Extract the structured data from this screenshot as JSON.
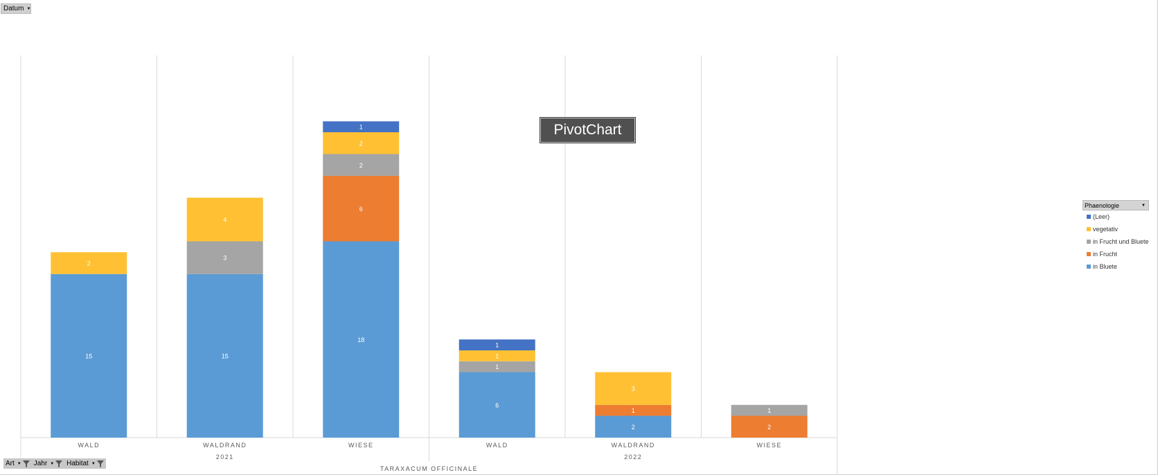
{
  "filters": {
    "datum": "Datum",
    "art": "Art",
    "jahr": "Jahr",
    "habitat": "Habitat"
  },
  "tooltip": "PivotChart",
  "legend": {
    "title": "Phaenologie",
    "items": [
      {
        "label": "(Leer)",
        "color": "#4472C4"
      },
      {
        "label": "vegetativ",
        "color": "#FFC133"
      },
      {
        "label": "in Frucht und Bluete",
        "color": "#A5A5A5"
      },
      {
        "label": "in Frucht",
        "color": "#ED7D31"
      },
      {
        "label": "in Bluete",
        "color": "#5B9BD5"
      }
    ]
  },
  "chart_data": {
    "type": "bar",
    "stacked": true,
    "categories": [
      "WALD",
      "WALDRAND",
      "WIESE",
      "WALD",
      "WALDRAND",
      "WIESE"
    ],
    "groups": [
      {
        "label": "2021",
        "span": [
          0,
          2
        ]
      },
      {
        "label": "2022",
        "span": [
          3,
          5
        ]
      }
    ],
    "top_group": "TARAXACUM OFFICINALE",
    "ymax": 35,
    "grid": "vertical-category-separators",
    "legend_position": "right",
    "series": [
      {
        "name": "in Bluete",
        "color": "#5B9BD5",
        "values": [
          15,
          15,
          18,
          6,
          2,
          0
        ]
      },
      {
        "name": "in Frucht",
        "color": "#ED7D31",
        "values": [
          0,
          0,
          6,
          0,
          1,
          2
        ]
      },
      {
        "name": "in Frucht und Bluete",
        "color": "#A5A5A5",
        "values": [
          0,
          3,
          2,
          1,
          0,
          1
        ]
      },
      {
        "name": "vegetativ",
        "color": "#FFC133",
        "values": [
          2,
          4,
          2,
          1,
          3,
          0
        ]
      },
      {
        "name": "(Leer)",
        "color": "#4472C4",
        "values": [
          0,
          0,
          1,
          1,
          0,
          0
        ]
      }
    ]
  }
}
